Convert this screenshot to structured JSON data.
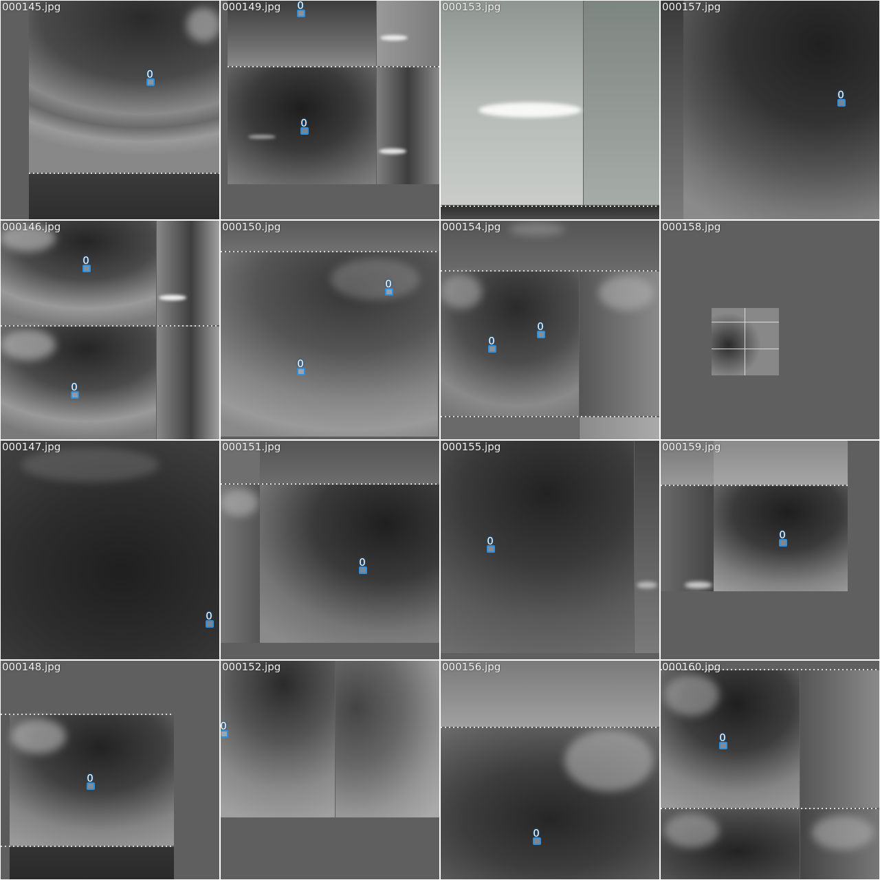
{
  "grid": {
    "cells": [
      {
        "file": "000145.jpg",
        "labels": [
          "0"
        ]
      },
      {
        "file": "000149.jpg",
        "labels": [
          "0",
          "0"
        ]
      },
      {
        "file": "000153.jpg",
        "labels": []
      },
      {
        "file": "000157.jpg",
        "labels": [
          "0"
        ]
      },
      {
        "file": "000146.jpg",
        "labels": [
          "0",
          "0"
        ]
      },
      {
        "file": "000150.jpg",
        "labels": [
          "0",
          "0"
        ]
      },
      {
        "file": "000154.jpg",
        "labels": [
          "0",
          "0"
        ]
      },
      {
        "file": "000158.jpg",
        "labels": []
      },
      {
        "file": "000147.jpg",
        "labels": [
          "0"
        ]
      },
      {
        "file": "000151.jpg",
        "labels": [
          "0"
        ]
      },
      {
        "file": "000155.jpg",
        "labels": [
          "0"
        ]
      },
      {
        "file": "000159.jpg",
        "labels": [
          "0"
        ]
      },
      {
        "file": "000148.jpg",
        "labels": [
          "0"
        ]
      },
      {
        "file": "000152.jpg",
        "labels": [
          "0"
        ]
      },
      {
        "file": "000156.jpg",
        "labels": [
          "0"
        ]
      },
      {
        "file": "000160.jpg",
        "labels": [
          "0"
        ]
      }
    ]
  },
  "colors": {
    "padding_gray": "#5f5f5f",
    "grid_line": "#ffffff",
    "detection_box": "#2e8fdc",
    "label_text": "#ffffff"
  }
}
